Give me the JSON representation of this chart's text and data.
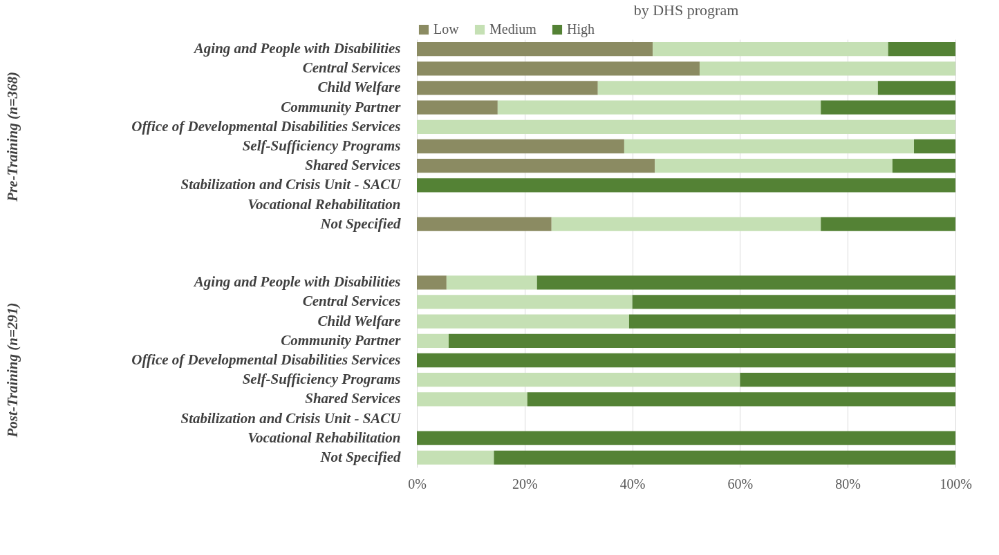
{
  "chart_data": {
    "type": "bar",
    "orientation": "horizontal",
    "stacked": true,
    "title": "by DHS program",
    "categories": [
      "Aging and People with Disabilities",
      "Central Services",
      "Child Welfare",
      "Community Partner",
      "Office of Developmental Disabilities Services",
      "Self-Sufficiency Programs",
      "Shared Services",
      "Stabilization and Crisis Unit - SACU",
      "Vocational Rehabilitation",
      "Not Specified",
      null,
      null,
      "Aging and People with Disabilities",
      "Central Services",
      "Child Welfare",
      "Community Partner",
      "Office of Developmental Disabilities Services",
      "Self-Sufficiency Programs",
      "Shared Services",
      "Stabilization and Crisis Unit - SACU",
      "Vocational Rehabilitation",
      "Not Specified"
    ],
    "series": [
      {
        "name": "Low",
        "color": "#8b8b62",
        "values": [
          43.8,
          52.5,
          33.6,
          15.0,
          null,
          38.5,
          44.2,
          null,
          null,
          25.0,
          null,
          null,
          5.5,
          null,
          null,
          null,
          null,
          null,
          null,
          null,
          null,
          null
        ]
      },
      {
        "name": "Medium",
        "color": "#c5e0b4",
        "values": [
          43.7,
          47.5,
          52.0,
          60.0,
          100,
          53.8,
          44.1,
          null,
          null,
          50.0,
          null,
          null,
          16.8,
          40.0,
          39.4,
          5.9,
          null,
          60.0,
          20.5,
          null,
          null,
          14.3
        ]
      },
      {
        "name": "High",
        "color": "#548235",
        "values": [
          12.5,
          null,
          14.4,
          25.0,
          null,
          7.7,
          11.7,
          100,
          null,
          25.0,
          null,
          null,
          77.7,
          60.0,
          60.6,
          94.1,
          100,
          40.0,
          79.5,
          null,
          100,
          85.7
        ]
      }
    ],
    "xlim": [
      0,
      100
    ],
    "xticks": [
      {
        "value": 0,
        "label": "0%"
      },
      {
        "value": 20,
        "label": "20%"
      },
      {
        "value": 40,
        "label": "40%"
      },
      {
        "value": 60,
        "label": "60%"
      },
      {
        "value": 80,
        "label": "80%"
      },
      {
        "value": 100,
        "label": "100%"
      }
    ],
    "grid": "x",
    "legend": "top",
    "annotations": [
      "Pre-Training (n=368)",
      "Post-Training (n=291)"
    ]
  }
}
